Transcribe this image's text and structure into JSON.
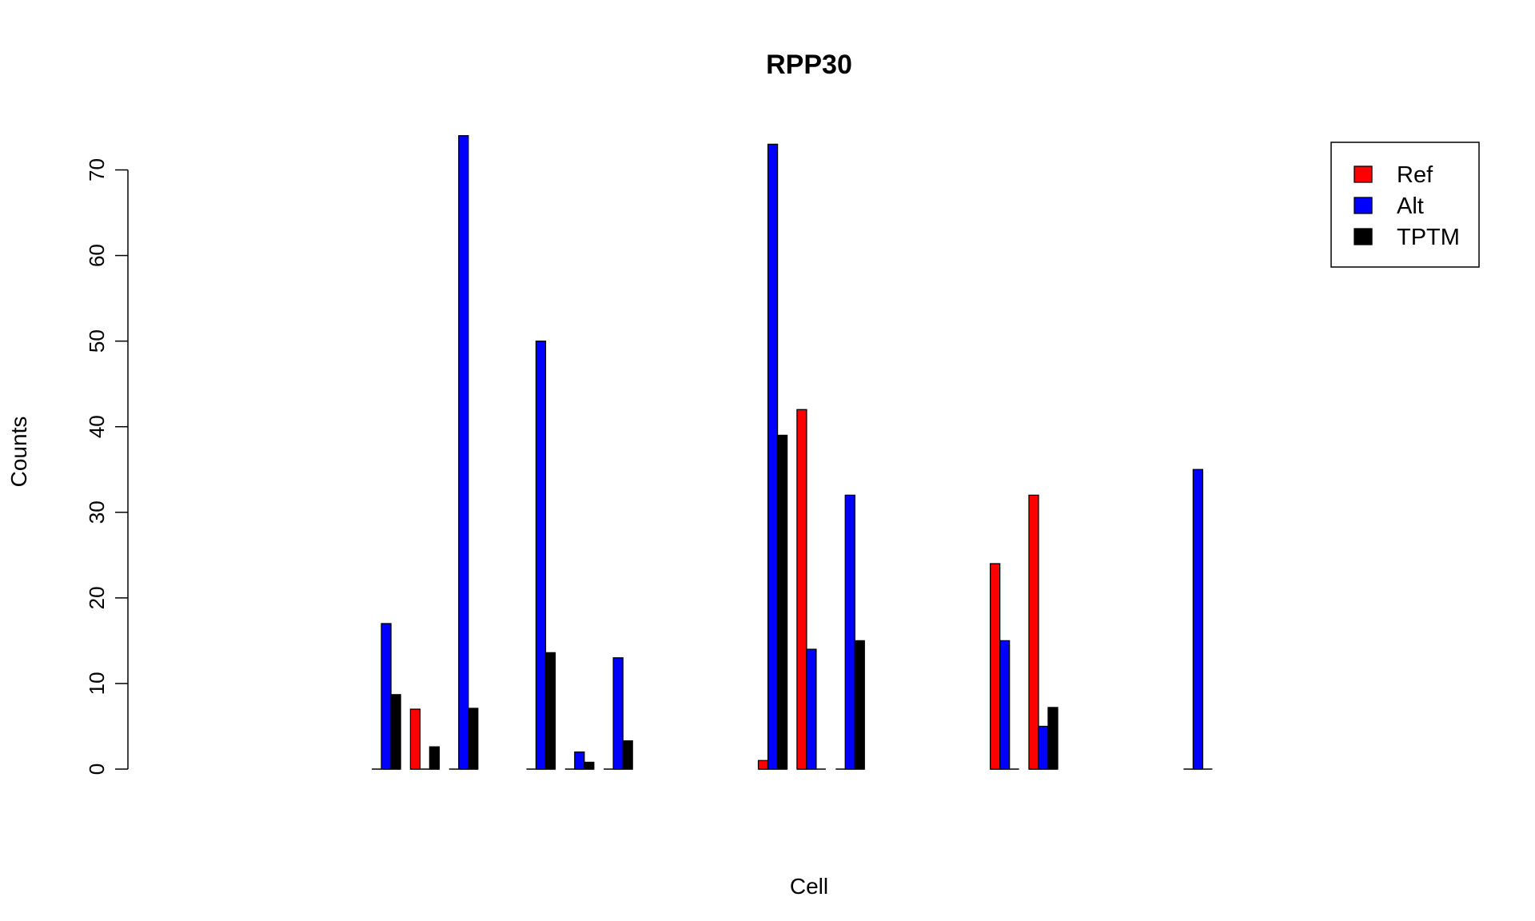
{
  "chart_data": {
    "type": "bar",
    "title": "RPP30",
    "xlabel": "Cell",
    "ylabel": "Counts",
    "ylim": [
      0,
      75
    ],
    "y_ticks": [
      0,
      10,
      20,
      30,
      40,
      50,
      60,
      70
    ],
    "y_tick_labels": [
      "0",
      "10",
      "20",
      "30",
      "40",
      "50",
      "60",
      "70"
    ],
    "grid": false,
    "legend_position": "top-right",
    "colors": {
      "Ref": "#ff0000",
      "Alt": "#0000ff",
      "TPTM": "#000000"
    },
    "categories": [
      "",
      "",
      "",
      "",
      "",
      "",
      "",
      "",
      "",
      "",
      "",
      "",
      "",
      "",
      "",
      "",
      "",
      "",
      "",
      "",
      "",
      "",
      "",
      "",
      "",
      ""
    ],
    "series": [
      {
        "name": "Ref",
        "values": [
          0,
          0,
          0,
          0,
          7,
          0,
          0,
          0,
          0,
          0,
          0,
          0,
          0,
          1,
          42,
          0,
          0,
          0,
          0,
          24,
          32,
          0,
          0,
          0,
          0,
          0
        ]
      },
      {
        "name": "Alt",
        "values": [
          0,
          0,
          0,
          17,
          0,
          74,
          0,
          50,
          2,
          13,
          0,
          0,
          0,
          73,
          14,
          32,
          0,
          0,
          0,
          15,
          5,
          0,
          0,
          0,
          35,
          0
        ]
      },
      {
        "name": "TPTM",
        "values": [
          0,
          0,
          0,
          8.7,
          2.6,
          7.1,
          0,
          13.6,
          0.8,
          3.3,
          0,
          0,
          0,
          39,
          0,
          15,
          0,
          0,
          0,
          0,
          7.2,
          0,
          0,
          0,
          0,
          0
        ]
      }
    ]
  }
}
